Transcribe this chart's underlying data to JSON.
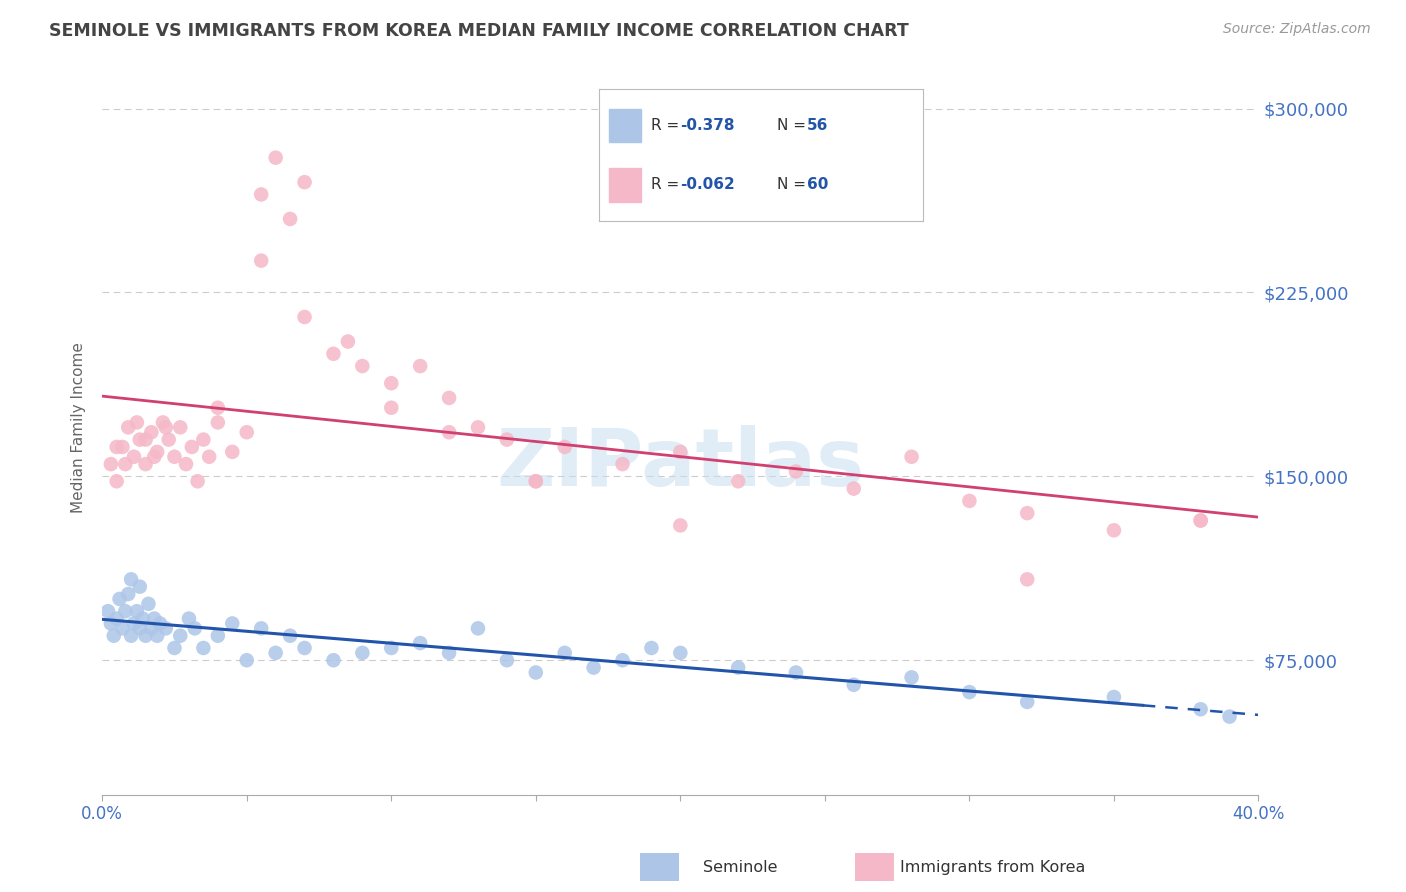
{
  "title": "SEMINOLE VS IMMIGRANTS FROM KOREA MEDIAN FAMILY INCOME CORRELATION CHART",
  "source_text": "Source: ZipAtlas.com",
  "ylabel": "Median Family Income",
  "xlim": [
    0.0,
    0.4
  ],
  "ylim": [
    20000,
    320000
  ],
  "yticks": [
    75000,
    150000,
    225000,
    300000
  ],
  "background_color": "#ffffff",
  "grid_color": "#cccccc",
  "title_color": "#444444",
  "axis_label_color": "#666666",
  "tick_color": "#4472c4",
  "seminole_color": "#adc6e8",
  "seminole_line_color": "#2255aa",
  "korea_color": "#f5b8c8",
  "korea_line_color": "#d04070",
  "watermark_color": "#c8dff0",
  "legend_label1": "Seminole",
  "legend_label2": "Immigrants from Korea",
  "seminole_x": [
    0.002,
    0.003,
    0.004,
    0.005,
    0.006,
    0.007,
    0.008,
    0.009,
    0.01,
    0.01,
    0.011,
    0.012,
    0.013,
    0.013,
    0.014,
    0.015,
    0.016,
    0.017,
    0.018,
    0.019,
    0.02,
    0.022,
    0.025,
    0.027,
    0.03,
    0.032,
    0.035,
    0.04,
    0.045,
    0.05,
    0.055,
    0.06,
    0.065,
    0.07,
    0.08,
    0.09,
    0.1,
    0.11,
    0.12,
    0.13,
    0.14,
    0.15,
    0.16,
    0.17,
    0.18,
    0.19,
    0.2,
    0.22,
    0.24,
    0.26,
    0.28,
    0.3,
    0.32,
    0.35,
    0.38,
    0.39
  ],
  "seminole_y": [
    95000,
    90000,
    85000,
    92000,
    100000,
    88000,
    95000,
    102000,
    108000,
    85000,
    90000,
    95000,
    88000,
    105000,
    92000,
    85000,
    98000,
    88000,
    92000,
    85000,
    90000,
    88000,
    80000,
    85000,
    92000,
    88000,
    80000,
    85000,
    90000,
    75000,
    88000,
    78000,
    85000,
    80000,
    75000,
    78000,
    80000,
    82000,
    78000,
    88000,
    75000,
    70000,
    78000,
    72000,
    75000,
    80000,
    78000,
    72000,
    70000,
    65000,
    68000,
    62000,
    58000,
    60000,
    55000,
    52000
  ],
  "korea_x": [
    0.003,
    0.005,
    0.007,
    0.009,
    0.011,
    0.013,
    0.015,
    0.017,
    0.019,
    0.021,
    0.023,
    0.025,
    0.027,
    0.029,
    0.031,
    0.033,
    0.035,
    0.037,
    0.04,
    0.045,
    0.05,
    0.055,
    0.06,
    0.065,
    0.07,
    0.08,
    0.09,
    0.1,
    0.11,
    0.12,
    0.13,
    0.14,
    0.15,
    0.16,
    0.18,
    0.2,
    0.22,
    0.24,
    0.26,
    0.28,
    0.3,
    0.32,
    0.35,
    0.38,
    0.005,
    0.008,
    0.012,
    0.015,
    0.018,
    0.022,
    0.04,
    0.055,
    0.07,
    0.085,
    0.1,
    0.12,
    0.15,
    0.2,
    0.32,
    0.38
  ],
  "korea_y": [
    155000,
    148000,
    162000,
    170000,
    158000,
    165000,
    155000,
    168000,
    160000,
    172000,
    165000,
    158000,
    170000,
    155000,
    162000,
    148000,
    165000,
    158000,
    172000,
    160000,
    168000,
    265000,
    280000,
    255000,
    270000,
    200000,
    195000,
    188000,
    195000,
    182000,
    170000,
    165000,
    148000,
    162000,
    155000,
    160000,
    148000,
    152000,
    145000,
    158000,
    140000,
    135000,
    128000,
    132000,
    162000,
    155000,
    172000,
    165000,
    158000,
    170000,
    178000,
    238000,
    215000,
    205000,
    178000,
    168000,
    148000,
    130000,
    108000,
    132000
  ]
}
